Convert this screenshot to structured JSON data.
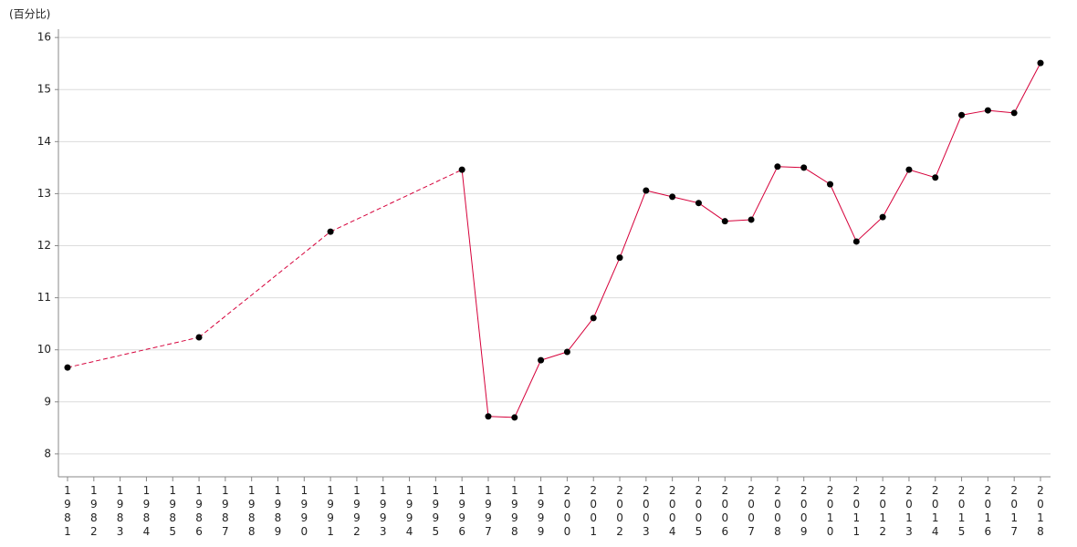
{
  "chart_data": {
    "type": "line",
    "y_label": "(百分比)",
    "categories": [
      "1981",
      "1982",
      "1983",
      "1984",
      "1985",
      "1986",
      "1987",
      "1988",
      "1989",
      "1990",
      "1991",
      "1992",
      "1993",
      "1994",
      "1995",
      "1996",
      "1997",
      "1998",
      "1999",
      "2000",
      "2001",
      "2002",
      "2003",
      "2004",
      "2005",
      "2006",
      "2007",
      "2008",
      "2009",
      "2010",
      "2011",
      "2012",
      "2013",
      "2014",
      "2015",
      "2016",
      "2017",
      "2018"
    ],
    "series": [
      {
        "color": "#d6003a",
        "marker_color": "#000000",
        "values": [
          9.66,
          null,
          null,
          null,
          null,
          10.24,
          null,
          null,
          null,
          null,
          12.27,
          null,
          null,
          null,
          null,
          13.46,
          8.72,
          8.7,
          9.8,
          9.96,
          10.61,
          11.77,
          13.06,
          12.94,
          12.82,
          12.47,
          12.5,
          13.52,
          13.5,
          13.18,
          12.08,
          12.55,
          13.46,
          13.31,
          14.51,
          14.6,
          14.55,
          15.51
        ]
      }
    ],
    "ylim": [
      7.56,
      16.16
    ],
    "yticks": [
      8,
      9,
      10,
      11,
      12,
      13,
      14,
      15,
      16
    ],
    "grid": true
  }
}
